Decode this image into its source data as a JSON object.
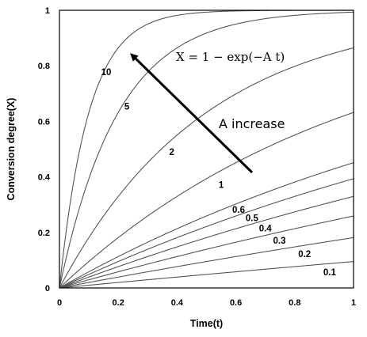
{
  "chart_data": {
    "type": "line",
    "title": "",
    "xlabel": "Time(t)",
    "ylabel": "Conversion degree(X)",
    "xlim": [
      0,
      1
    ],
    "ylim": [
      0,
      1
    ],
    "x_ticks": [
      "0",
      "0.2",
      "0.4",
      "0.6",
      "0.8",
      "1"
    ],
    "y_ticks": [
      "0",
      "0.2",
      "0.4",
      "0.6",
      "0.8",
      "1"
    ],
    "grid": false,
    "legend": "none",
    "equation": "X = 1 − exp(−A t)",
    "annotation": "A increase",
    "series": [
      {
        "label": "0.1",
        "A": 0.1
      },
      {
        "label": "0.2",
        "A": 0.2
      },
      {
        "label": "0.3",
        "A": 0.3
      },
      {
        "label": "0.4",
        "A": 0.4
      },
      {
        "label": "0.5",
        "A": 0.5
      },
      {
        "label": "0.6",
        "A": 0.6
      },
      {
        "label": "1",
        "A": 1
      },
      {
        "label": "2",
        "A": 2
      },
      {
        "label": "5",
        "A": 5
      },
      {
        "label": "10",
        "A": 10
      }
    ],
    "line_color": "#555555"
  }
}
